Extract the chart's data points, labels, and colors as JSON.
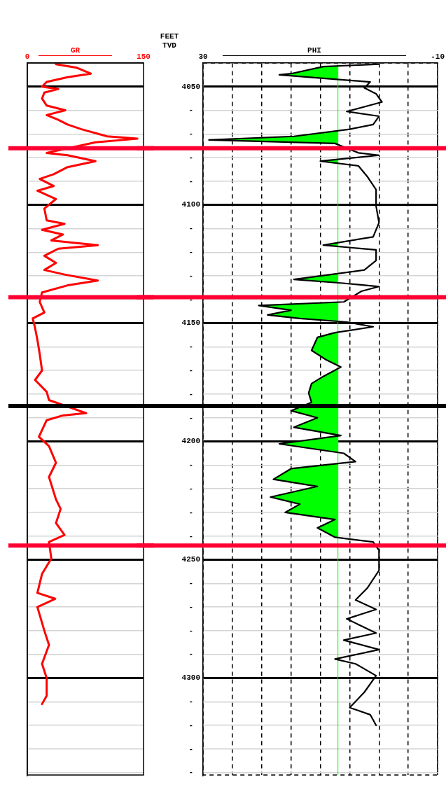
{
  "chart_data": [
    {
      "type": "line",
      "xlabel": "GR",
      "xlim": [
        0,
        150
      ],
      "xticks": [
        0,
        150
      ],
      "ylim": [
        4341,
        4040
      ],
      "yticks": [
        4050,
        {
          "value": 4060,
          "label": null
        },
        {
          "value": 4070,
          "label": null
        },
        {
          "value": 4080,
          "label": null
        },
        {
          "value": 4090,
          "label": null
        },
        4100,
        {
          "value": 4110,
          "label": null
        },
        {
          "value": 4120,
          "label": null
        },
        {
          "value": 4130,
          "label": null
        },
        {
          "value": 4140,
          "label": null
        },
        4150,
        {
          "value": 4160,
          "label": null
        },
        {
          "value": 4170,
          "label": null
        },
        {
          "value": 4180,
          "label": null
        },
        {
          "value": 4190,
          "label": null
        },
        4200,
        {
          "value": 4210,
          "label": null
        },
        {
          "value": 4220,
          "label": null
        },
        {
          "value": 4230,
          "label": null
        },
        {
          "value": 4240,
          "label": null
        },
        4250,
        {
          "value": 4260,
          "label": null
        },
        {
          "value": 4270,
          "label": null
        },
        {
          "value": 4280,
          "label": null
        },
        {
          "value": 4290,
          "label": null
        },
        4300,
        {
          "value": 4310,
          "label": null
        },
        {
          "value": 4320,
          "label": null
        },
        {
          "value": 4330,
          "label": null
        },
        {
          "value": 4340,
          "label": null
        }
      ],
      "tick_labels": "x",
      "grid": "y",
      "series": [
        {
          "color": "#ff0000",
          "x": [
            37,
            64,
            82,
            52,
            25,
            19,
            40,
            22,
            19,
            25,
            49,
            25,
            40,
            52,
            70,
            103,
            142,
            88,
            25,
            52,
            88,
            52,
            34,
            16,
            34,
            13,
            37,
            22,
            25,
            48,
            19,
            46,
            31,
            91,
            40,
            22,
            37,
            22,
            49,
            91,
            52,
            19,
            16,
            22,
            7,
            10,
            13,
            16,
            19,
            10,
            25,
            28,
            76,
            46,
            25,
            15,
            28,
            37,
            28,
            37,
            43,
            37,
            48,
            28,
            31,
            19,
            13,
            36,
            13,
            22,
            28,
            19,
            25,
            25,
            19
          ],
          "values": [
            4040.5,
            4042,
            4044.5,
            4046,
            4048,
            4050,
            4051,
            4052.5,
            4055,
            4058,
            4060,
            4062,
            4064,
            4066,
            4068,
            4071,
            4072,
            4073.5,
            4078,
            4079,
            4081.5,
            4084,
            4087,
            4089,
            4092,
            4094,
            4097.5,
            4101.5,
            4106.5,
            4108,
            4110.5,
            4112.5,
            4115,
            4117,
            4118.5,
            4121.5,
            4124.5,
            4127.5,
            4129.5,
            4132,
            4134,
            4137,
            4141,
            4145.5,
            4148,
            4152,
            4157,
            4163,
            4170,
            4174,
            4179,
            4182.5,
            4188,
            4189,
            4191,
            4198,
            4202,
            4209,
            4215,
            4224.5,
            4228.5,
            4234.5,
            4239.5,
            4242.5,
            4249.5,
            4256,
            4264,
            4266.5,
            4270,
            4280,
            4286,
            4294,
            4300,
            4307.5,
            4311
          ]
        }
      ],
      "ref_lines": [
        {
          "axis": "y",
          "value": 4076,
          "color": "#ff0033"
        },
        {
          "axis": "y",
          "value": 4139,
          "color": "#ff0033"
        },
        {
          "axis": "y",
          "value": 4185,
          "color": "#000000"
        },
        {
          "axis": "y",
          "value": 4244,
          "color": "#ff0033"
        }
      ]
    },
    {
      "type": "line",
      "xlabel": "PHI",
      "ylabel": "FEET TVD",
      "xlim": [
        30,
        -10
      ],
      "xticks": [
        30,
        {
          "value": 25,
          "label": null
        },
        {
          "value": 20,
          "label": null
        },
        {
          "value": 15,
          "label": null
        },
        {
          "value": 10,
          "label": null
        },
        {
          "value": 5,
          "label": null
        },
        {
          "value": 0,
          "label": null
        },
        {
          "value": -5,
          "label": null
        },
        -10
      ],
      "ylim": [
        4341,
        4040
      ],
      "yticks": [
        4050,
        {
          "value": 4060,
          "label": "-"
        },
        {
          "value": 4070,
          "label": "-"
        },
        {
          "value": 4080,
          "label": "-"
        },
        {
          "value": 4090,
          "label": "-"
        },
        4100,
        {
          "value": 4110,
          "label": "-"
        },
        {
          "value": 4120,
          "label": "-"
        },
        {
          "value": 4130,
          "label": "-"
        },
        {
          "value": 4140,
          "label": "-"
        },
        4150,
        {
          "value": 4160,
          "label": "-"
        },
        {
          "value": 4170,
          "label": "-"
        },
        {
          "value": 4180,
          "label": "-"
        },
        {
          "value": 4190,
          "label": "-"
        },
        4200,
        {
          "value": 4210,
          "label": "-"
        },
        {
          "value": 4220,
          "label": "-"
        },
        {
          "value": 4230,
          "label": "-"
        },
        {
          "value": 4240,
          "label": "-"
        },
        4250,
        {
          "value": 4260,
          "label": "-"
        },
        {
          "value": 4270,
          "label": "-"
        },
        {
          "value": 4280,
          "label": "-"
        },
        {
          "value": 4290,
          "label": "-"
        },
        4300,
        {
          "value": 4310,
          "label": "-"
        },
        {
          "value": 4320,
          "label": "-"
        },
        {
          "value": 4330,
          "label": "-"
        },
        {
          "value": 4340,
          "label": "-"
        }
      ],
      "grid": true,
      "series": [
        {
          "color": "#000000",
          "x": [
            0,
            9.5,
            15,
            17,
            9.5,
            1.5,
            2.5,
            0.5,
            -0.5,
            5.5,
            0,
            1,
            5,
            14.5,
            29,
            7.5,
            3.5,
            0,
            10,
            3.5,
            2,
            0.5,
            0.5,
            0,
            1,
            9.5,
            0.5,
            0.5,
            2.5,
            14.5,
            6.5,
            0,
            3,
            6,
            20.5,
            15,
            19,
            13.5,
            5.5,
            1,
            7.5,
            10.5,
            11.5,
            9,
            6.5,
            9.5,
            11.5,
            12,
            11.5,
            15,
            10.5,
            14.5,
            6.5,
            17,
            6,
            4,
            15,
            18,
            10.5,
            18.5,
            13.5,
            16,
            7.5,
            10.5,
            7.5,
            1,
            0,
            0,
            2,
            4,
            0.5,
            5.5,
            0.5,
            6,
            0,
            7.5,
            4,
            0.5,
            2.5,
            5,
            1.5,
            0.5
          ],
          "values": [
            4040.5,
            4041.5,
            4044.5,
            4045,
            4046.5,
            4048,
            4050.5,
            4053,
            4056.5,
            4060.5,
            4062.5,
            4066,
            4068,
            4071,
            4072.5,
            4074,
            4078,
            4079,
            4081.5,
            4083.5,
            4088,
            4093.5,
            4100.5,
            4107.5,
            4113.5,
            4117,
            4119,
            4123.5,
            4127.5,
            4131.5,
            4133,
            4134.5,
            4136.5,
            4141,
            4142.5,
            4144.5,
            4146.5,
            4148,
            4149.5,
            4151.5,
            4154,
            4156,
            4161.5,
            4165.5,
            4168.5,
            4172.5,
            4175.5,
            4179.5,
            4183.5,
            4187,
            4190,
            4194,
            4197.5,
            4201,
            4205,
            4208.5,
            4211.5,
            4216,
            4219,
            4223.5,
            4226.5,
            4230,
            4233,
            4236.5,
            4240.5,
            4242.5,
            4246,
            4254.5,
            4262,
            4267,
            4271,
            4275,
            4281,
            4284,
            4288,
            4292,
            4294,
            4299,
            4306,
            4312.5,
            4315.5,
            4320
          ]
        }
      ],
      "ref_lines": [
        {
          "axis": "x",
          "value": 7,
          "color": "#00ff00"
        },
        {
          "axis": "y",
          "value": 4076,
          "color": "#ff0033"
        },
        {
          "axis": "y",
          "value": 4139,
          "color": "#ff0033"
        },
        {
          "axis": "y",
          "value": 4185,
          "color": "#000000"
        },
        {
          "axis": "y",
          "value": 4244,
          "color": "#ff0033"
        }
      ]
    }
  ]
}
